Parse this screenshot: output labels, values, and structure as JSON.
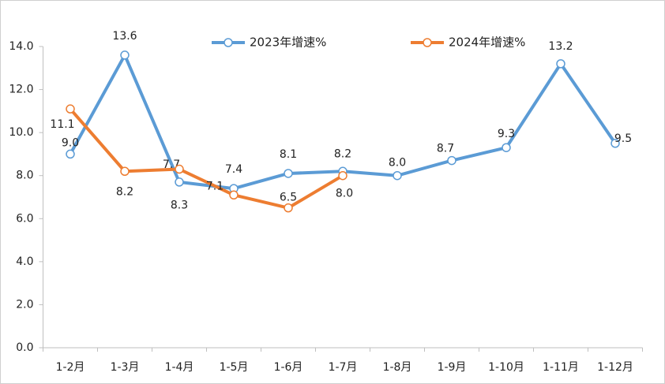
{
  "chart_data": {
    "type": "line",
    "categories": [
      "1-2月",
      "1-3月",
      "1-4月",
      "1-5月",
      "1-6月",
      "1-7月",
      "1-8月",
      "1-9月",
      "1-10月",
      "1-11月",
      "1-12月"
    ],
    "series": [
      {
        "name": "2023年增速%",
        "color": "#5b9bd5",
        "values": [
          9.0,
          13.6,
          7.7,
          7.4,
          8.1,
          8.2,
          8.0,
          8.7,
          9.3,
          13.2,
          9.5
        ],
        "value_labels": [
          "9.0",
          "13.6",
          "7.7",
          "7.4",
          "8.1",
          "8.2",
          "8.0",
          "8.7",
          "9.3",
          "13.2",
          "9.5"
        ]
      },
      {
        "name": "2024年增速%",
        "color": "#ed7d31",
        "values": [
          11.1,
          8.2,
          8.3,
          7.1,
          6.5,
          8.0,
          null,
          null,
          null,
          null,
          null
        ],
        "value_labels": [
          "11.1",
          "8.2",
          "8.3",
          "7.1",
          "6.5",
          "8.0",
          null,
          null,
          null,
          null,
          null
        ]
      }
    ],
    "ylim": [
      0,
      14
    ],
    "yticks": [
      {
        "value": 0,
        "label": "0.0"
      },
      {
        "value": 2,
        "label": "2.0"
      },
      {
        "value": 4,
        "label": "4.0"
      },
      {
        "value": 6,
        "label": "6.0"
      },
      {
        "value": 8,
        "label": "8.0"
      },
      {
        "value": 10,
        "label": "10.0"
      },
      {
        "value": 12,
        "label": "12.0"
      },
      {
        "value": 14,
        "label": "14.0"
      }
    ],
    "legend": "top"
  }
}
